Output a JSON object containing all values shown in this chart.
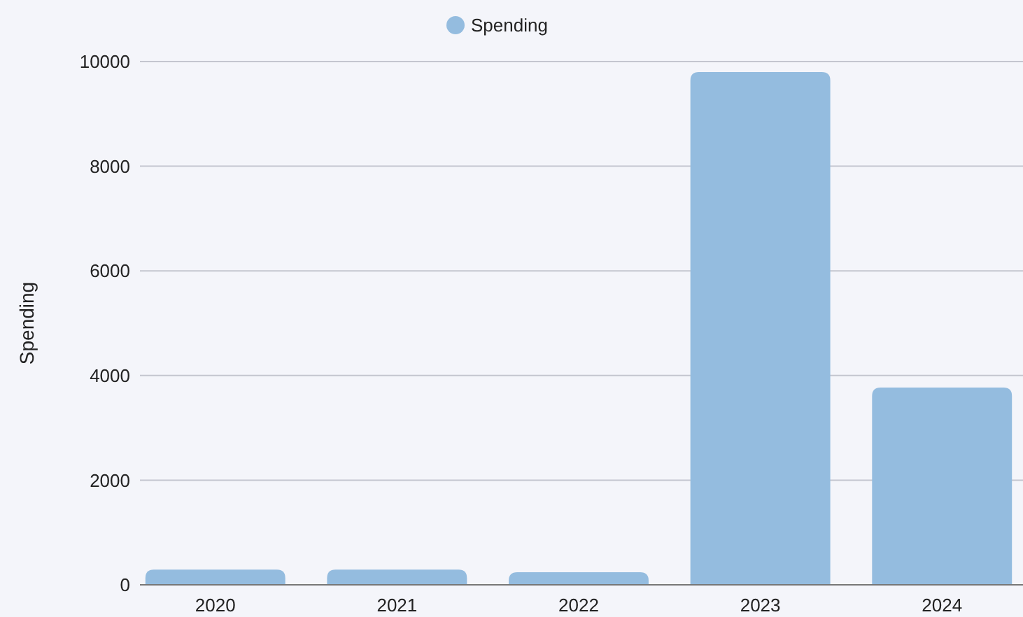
{
  "chart_data": {
    "type": "bar",
    "ylabel": "Spending",
    "categories": [
      "2020",
      "2021",
      "2022",
      "2023",
      "2024"
    ],
    "series": [
      {
        "name": "Spending",
        "color": "#94bcdf",
        "values": [
          290,
          290,
          240,
          9800,
          3770
        ]
      }
    ],
    "ylim": [
      0,
      10000
    ],
    "yticks": [
      0,
      2000,
      4000,
      6000,
      8000,
      10000
    ],
    "grid": "y",
    "legend": "top"
  }
}
